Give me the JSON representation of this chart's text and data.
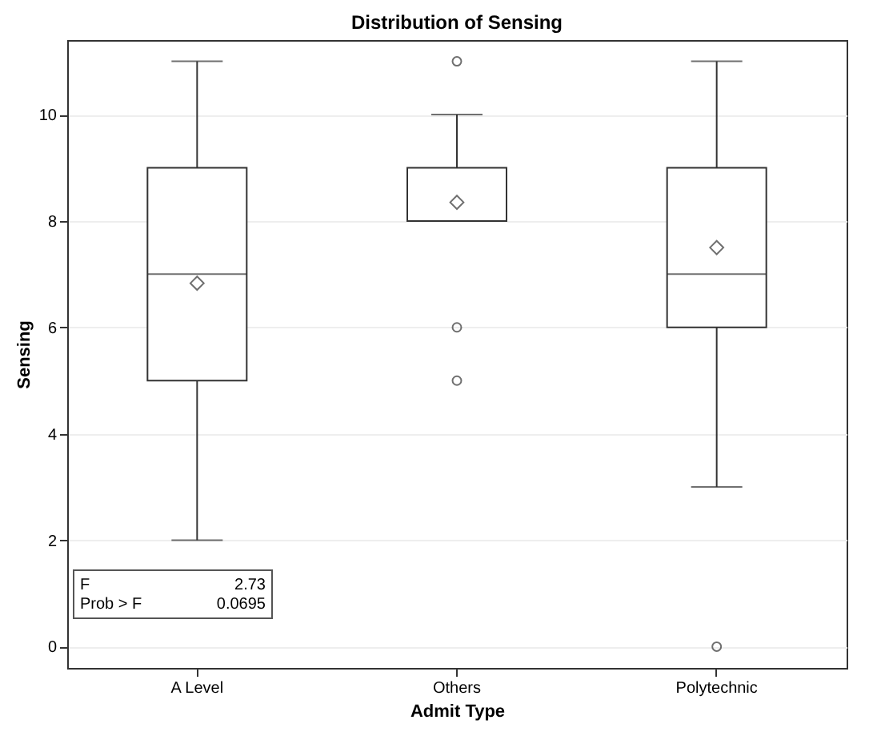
{
  "chart_data": {
    "type": "box",
    "title": "Distribution of Sensing",
    "xlabel": "Admit Type",
    "ylabel": "Sensing",
    "categories": [
      "A Level",
      "Others",
      "Polytechnic"
    ],
    "boxes": [
      {
        "low": 2,
        "q1": 5,
        "median": 7,
        "q3": 9,
        "high": 11,
        "mean": 6.83
      },
      {
        "low": 8,
        "q1": 8,
        "median": 8,
        "q3": 9,
        "high": 10,
        "mean": 8.35,
        "outliers": [
          11,
          6,
          5
        ]
      },
      {
        "low": 3,
        "q1": 6,
        "median": 7,
        "q3": 9,
        "high": 11,
        "mean": 7.5,
        "outliers": [
          0
        ]
      }
    ],
    "ylim": [
      -0.4,
      11.4
    ],
    "yticks": [
      0,
      2,
      4,
      6,
      8,
      10
    ],
    "grid": "y",
    "marker": "diamond",
    "annotations": [
      "F 2.73",
      "Prob > F 0.0695"
    ]
  }
}
